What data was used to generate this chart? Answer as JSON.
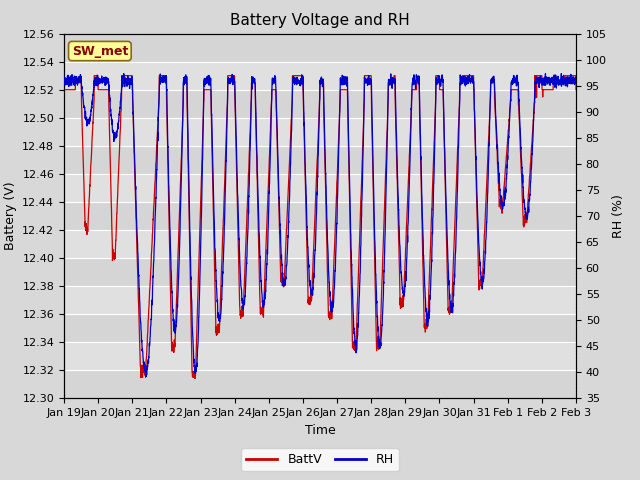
{
  "title": "Battery Voltage and RH",
  "xlabel": "Time",
  "ylabel_left": "Battery (V)",
  "ylabel_right": "RH (%)",
  "station_label": "SW_met",
  "batt_ylim": [
    12.3,
    12.56
  ],
  "rh_ylim": [
    35,
    105
  ],
  "batt_yticks": [
    12.3,
    12.32,
    12.34,
    12.36,
    12.38,
    12.4,
    12.42,
    12.44,
    12.46,
    12.48,
    12.5,
    12.52,
    12.54,
    12.56
  ],
  "rh_yticks": [
    35,
    40,
    45,
    50,
    55,
    60,
    65,
    70,
    75,
    80,
    85,
    90,
    95,
    100,
    105
  ],
  "batt_color": "#cc0000",
  "rh_color": "#0000cc",
  "bg_color": "#e0e0e0",
  "grid_color": "#ffffff",
  "legend_batt": "BattV",
  "legend_rh": "RH",
  "title_fontsize": 11,
  "label_fontsize": 9,
  "tick_fontsize": 8,
  "xtick_labels": [
    "Jan 19",
    "Jan 20",
    "Jan 21",
    "Jan 22",
    "Jan 23",
    "Jan 24",
    "Jan 25",
    "Jan 26",
    "Jan 27",
    "Jan 28",
    "Jan 29",
    "Jan 30",
    "Jan 31",
    "Feb 1",
    "Feb 2",
    "Feb 3"
  ],
  "n_days": 15
}
